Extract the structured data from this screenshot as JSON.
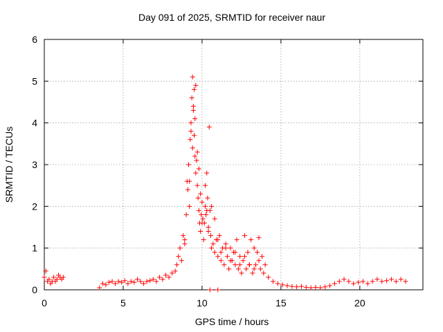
{
  "chart_data": {
    "type": "scatter",
    "title": "Day 091 of 2025, SRMTID for receiver naur",
    "xlabel": "GPS time / hours",
    "ylabel": "SRMTID / TECUs",
    "xlim": [
      0,
      24
    ],
    "ylim": [
      0,
      6
    ],
    "xticks": [
      0,
      5,
      10,
      15,
      20
    ],
    "yticks": [
      0,
      1,
      2,
      3,
      4,
      5,
      6
    ],
    "xtick_labels": [
      "0",
      "5",
      "10",
      "15",
      "20"
    ],
    "ytick_labels": [
      "0",
      "1",
      "2",
      "3",
      "4",
      "5",
      "6"
    ],
    "grid": true,
    "marker": "+",
    "series": [
      {
        "name": "SRMTID",
        "color": "#ff0000",
        "x": [
          0.0,
          0.1,
          0.2,
          0.3,
          0.4,
          0.5,
          0.6,
          0.7,
          0.8,
          0.9,
          1.0,
          1.1,
          1.2,
          3.5,
          3.7,
          3.9,
          4.1,
          4.3,
          4.5,
          4.7,
          4.9,
          5.1,
          5.3,
          5.5,
          5.7,
          5.9,
          6.1,
          6.3,
          6.5,
          6.7,
          6.9,
          7.1,
          7.3,
          7.5,
          7.7,
          7.9,
          8.1,
          8.3,
          8.4,
          8.5,
          8.6,
          8.7,
          8.8,
          8.9,
          9.0,
          9.1,
          9.15,
          9.2,
          9.25,
          9.3,
          9.35,
          9.4,
          9.45,
          9.5,
          9.55,
          9.6,
          9.65,
          9.7,
          9.75,
          9.8,
          9.85,
          9.9,
          9.95,
          10.0,
          10.05,
          10.1,
          10.15,
          10.2,
          10.25,
          10.3,
          10.35,
          10.4,
          10.45,
          10.5,
          10.55,
          10.6,
          10.7,
          10.8,
          10.9,
          11.0,
          11.1,
          11.2,
          11.3,
          11.4,
          11.5,
          11.6,
          11.7,
          11.8,
          11.9,
          12.0,
          12.1,
          12.2,
          12.3,
          12.4,
          12.5,
          12.6,
          12.7,
          12.8,
          12.9,
          13.0,
          13.1,
          13.2,
          13.3,
          13.4,
          13.5,
          13.6,
          13.7,
          13.8,
          13.9,
          14.0,
          14.2,
          14.5,
          14.8,
          15.1,
          15.4,
          15.7,
          16.0,
          16.3,
          16.6,
          16.9,
          17.2,
          17.5,
          17.8,
          18.1,
          18.4,
          18.7,
          19.0,
          19.3,
          19.6,
          19.9,
          20.2,
          20.5,
          20.8,
          21.1,
          21.4,
          21.7,
          22.0,
          22.3,
          22.6,
          22.9,
          9.2,
          9.4,
          9.5,
          9.6,
          9.7,
          9.8,
          9.9,
          10.0,
          10.2,
          10.3,
          10.4,
          10.6,
          10.8,
          11.0,
          11.2,
          11.5,
          11.8,
          12.1,
          12.4,
          12.7,
          13.0,
          13.3,
          13.6,
          10.5,
          11.0,
          9.3,
          9.45,
          9.55,
          8.9,
          9.05
        ],
        "y": [
          0.3,
          0.45,
          0.2,
          0.25,
          0.15,
          0.2,
          0.3,
          0.2,
          0.25,
          0.35,
          0.3,
          0.25,
          0.3,
          0.05,
          0.15,
          0.12,
          0.18,
          0.2,
          0.15,
          0.2,
          0.18,
          0.22,
          0.15,
          0.2,
          0.18,
          0.25,
          0.2,
          0.15,
          0.2,
          0.22,
          0.25,
          0.2,
          0.3,
          0.25,
          0.35,
          0.3,
          0.4,
          0.45,
          0.6,
          0.8,
          1.0,
          0.7,
          1.3,
          1.1,
          1.8,
          2.4,
          3.0,
          2.6,
          3.6,
          4.0,
          4.6,
          5.1,
          4.3,
          3.7,
          3.2,
          2.8,
          3.1,
          2.5,
          2.2,
          1.9,
          1.6,
          1.4,
          1.8,
          2.1,
          1.7,
          1.2,
          1.6,
          2.0,
          1.8,
          2.8,
          2.2,
          1.5,
          3.9,
          1.9,
          1.3,
          1.0,
          1.1,
          0.9,
          1.2,
          0.8,
          1.3,
          0.7,
          1.0,
          0.6,
          1.1,
          0.8,
          0.5,
          1.0,
          0.7,
          0.9,
          0.6,
          1.2,
          0.5,
          0.8,
          0.4,
          0.7,
          1.3,
          0.5,
          0.9,
          0.6,
          1.2,
          0.4,
          1.0,
          0.6,
          0.9,
          1.25,
          0.5,
          0.8,
          0.4,
          0.6,
          0.3,
          0.2,
          0.15,
          0.12,
          0.1,
          0.08,
          0.07,
          0.08,
          0.06,
          0.05,
          0.06,
          0.05,
          0.07,
          0.1,
          0.15,
          0.2,
          0.25,
          0.2,
          0.15,
          0.18,
          0.2,
          0.15,
          0.2,
          0.25,
          0.2,
          0.22,
          0.25,
          0.2,
          0.25,
          0.2,
          2.0,
          3.4,
          4.8,
          4.9,
          3.3,
          2.9,
          2.3,
          1.6,
          2.5,
          1.9,
          1.4,
          2.0,
          1.7,
          1.2,
          0.9,
          1.0,
          0.7,
          0.9,
          0.6,
          0.8,
          0.6,
          0.5,
          0.7,
          0.0,
          0.0,
          3.8,
          4.4,
          4.1,
          1.2,
          2.6
        ]
      }
    ]
  }
}
